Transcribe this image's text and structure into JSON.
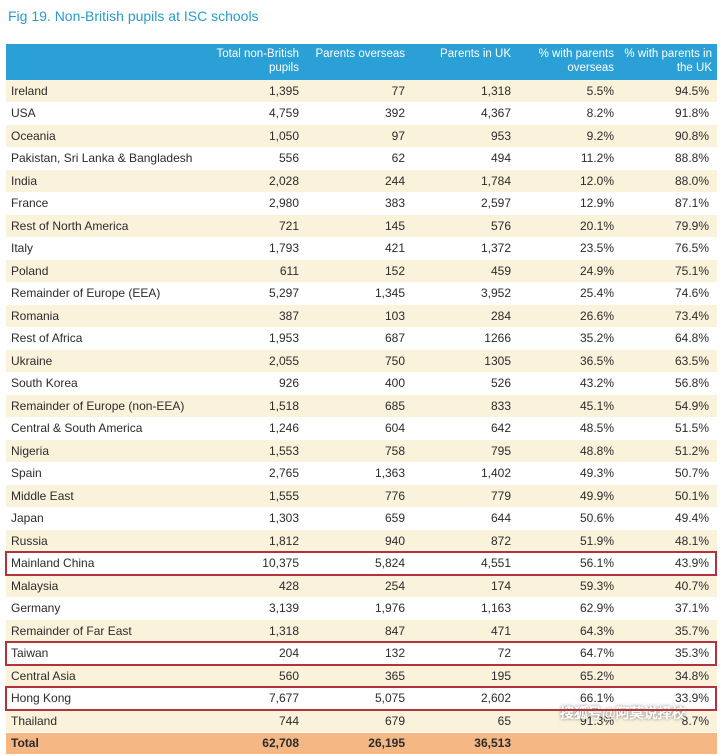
{
  "title": "Fig 19. Non-British pupils at ISC schools",
  "headers": [
    "",
    "Total non-British pupils",
    "Parents overseas",
    "Parents in UK",
    "% with parents overseas",
    "% with parents in the UK"
  ],
  "rows": [
    [
      "Ireland",
      "1,395",
      "77",
      "1,318",
      "5.5%",
      "94.5%"
    ],
    [
      "USA",
      "4,759",
      "392",
      "4,367",
      "8.2%",
      "91.8%"
    ],
    [
      "Oceania",
      "1,050",
      "97",
      "953",
      "9.2%",
      "90.8%"
    ],
    [
      "Pakistan, Sri Lanka & Bangladesh",
      "556",
      "62",
      "494",
      "11.2%",
      "88.8%"
    ],
    [
      "India",
      "2,028",
      "244",
      "1,784",
      "12.0%",
      "88.0%"
    ],
    [
      "France",
      "2,980",
      "383",
      "2,597",
      "12.9%",
      "87.1%"
    ],
    [
      "Rest of North America",
      "721",
      "145",
      "576",
      "20.1%",
      "79.9%"
    ],
    [
      "Italy",
      "1,793",
      "421",
      "1,372",
      "23.5%",
      "76.5%"
    ],
    [
      "Poland",
      "611",
      "152",
      "459",
      "24.9%",
      "75.1%"
    ],
    [
      "Remainder of Europe (EEA)",
      "5,297",
      "1,345",
      "3,952",
      "25.4%",
      "74.6%"
    ],
    [
      "Romania",
      "387",
      "103",
      "284",
      "26.6%",
      "73.4%"
    ],
    [
      "Rest of Africa",
      "1,953",
      "687",
      "1266",
      "35.2%",
      "64.8%"
    ],
    [
      "Ukraine",
      "2,055",
      "750",
      "1305",
      "36.5%",
      "63.5%"
    ],
    [
      "South Korea",
      "926",
      "400",
      "526",
      "43.2%",
      "56.8%"
    ],
    [
      "Remainder of Europe (non-EEA)",
      "1,518",
      "685",
      "833",
      "45.1%",
      "54.9%"
    ],
    [
      "Central & South America",
      "1,246",
      "604",
      "642",
      "48.5%",
      "51.5%"
    ],
    [
      "Nigeria",
      "1,553",
      "758",
      "795",
      "48.8%",
      "51.2%"
    ],
    [
      "Spain",
      "2,765",
      "1,363",
      "1,402",
      "49.3%",
      "50.7%"
    ],
    [
      "Middle East",
      "1,555",
      "776",
      "779",
      "49.9%",
      "50.1%"
    ],
    [
      "Japan",
      "1,303",
      "659",
      "644",
      "50.6%",
      "49.4%"
    ],
    [
      "Russia",
      "1,812",
      "940",
      "872",
      "51.9%",
      "48.1%"
    ],
    [
      "Mainland China",
      "10,375",
      "5,824",
      "4,551",
      "56.1%",
      "43.9%"
    ],
    [
      "Malaysia",
      "428",
      "254",
      "174",
      "59.3%",
      "40.7%"
    ],
    [
      "Germany",
      "3,139",
      "1,976",
      "1,163",
      "62.9%",
      "37.1%"
    ],
    [
      "Remainder of Far East",
      "1,318",
      "847",
      "471",
      "64.3%",
      "35.7%"
    ],
    [
      "Taiwan",
      "204",
      "132",
      "72",
      "64.7%",
      "35.3%"
    ],
    [
      "Central Asia",
      "560",
      "365",
      "195",
      "65.2%",
      "34.8%"
    ],
    [
      "Hong Kong",
      "7,677",
      "5,075",
      "2,602",
      "66.1%",
      "33.9%"
    ],
    [
      "Thailand",
      "744",
      "679",
      "65",
      "91.3%",
      "8.7%"
    ]
  ],
  "total": [
    "Total",
    "62,708",
    "26,195",
    "36,513",
    "",
    ""
  ],
  "highlighted_rows": [
    "Mainland China",
    "Taiwan",
    "Hong Kong"
  ],
  "watermark": "搜狐号@阿莫说择校",
  "colors": {
    "title": "#2a9bc8",
    "header_bg": "#2aa0d6",
    "stripe": "#fbf2dc",
    "total_bg": "#f5b784",
    "highlight_border": "#b2333c"
  }
}
